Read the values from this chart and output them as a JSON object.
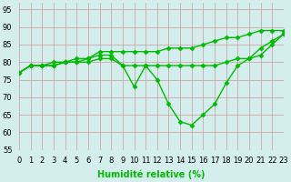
{
  "xlabel": "Humidité relative (%)",
  "x": [
    0,
    1,
    2,
    3,
    4,
    5,
    6,
    7,
    8,
    9,
    10,
    11,
    12,
    13,
    14,
    15,
    16,
    17,
    18,
    19,
    20,
    21,
    22,
    23
  ],
  "lines": [
    {
      "y": [
        77,
        79,
        79,
        80,
        80,
        81,
        81,
        83,
        83,
        83,
        83,
        83,
        83,
        84,
        84,
        84,
        85,
        86,
        87,
        87,
        88,
        89,
        89,
        89
      ]
    },
    {
      "y": [
        77,
        79,
        79,
        79,
        80,
        80,
        81,
        82,
        82,
        79,
        79,
        79,
        79,
        79,
        79,
        79,
        79,
        79,
        80,
        81,
        81,
        82,
        85,
        88
      ]
    },
    {
      "y": [
        77,
        79,
        79,
        79,
        80,
        80,
        80,
        81,
        81,
        79,
        73,
        79,
        75,
        68,
        63,
        62,
        65,
        68,
        74,
        79,
        81,
        84,
        86,
        88
      ]
    }
  ],
  "xlim": [
    0,
    23
  ],
  "ylim": [
    55,
    97
  ],
  "yticks": [
    55,
    60,
    65,
    70,
    75,
    80,
    85,
    90,
    95
  ],
  "xticks": [
    0,
    1,
    2,
    3,
    4,
    5,
    6,
    7,
    8,
    9,
    10,
    11,
    12,
    13,
    14,
    15,
    16,
    17,
    18,
    19,
    20,
    21,
    22,
    23
  ],
  "bg_color": "#d4eeed",
  "line_color": "#00bb00",
  "grid_color": "#cc9999",
  "tick_fontsize": 6,
  "label_fontsize": 7,
  "markersize": 2.5,
  "linewidth": 1.0
}
